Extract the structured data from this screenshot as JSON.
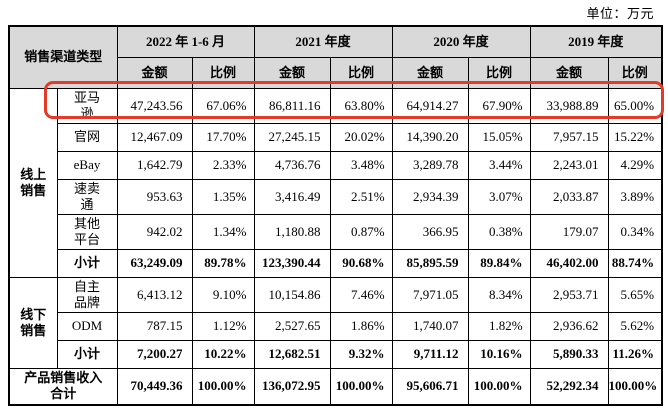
{
  "unit_label": "单位：万元",
  "highlight": {
    "target_row": "亚马逊",
    "color": "#e23b2a"
  },
  "header_bg": "#d9d9d9",
  "table": {
    "header": {
      "channel_type": "销售渠道类型",
      "periods": [
        "2022 年 1-6 月",
        "2021 年度",
        "2020 年度",
        "2019 年度"
      ],
      "amount_label": "金额",
      "ratio_label": "比例"
    },
    "groups": {
      "online": "线上\n销售",
      "offline": "线下\n销售"
    },
    "rows": [
      {
        "channel": "亚马\n逊",
        "values": [
          "47,243.56",
          "67.06%",
          "86,811.16",
          "63.80%",
          "64,914.27",
          "67.90%",
          "33,988.89",
          "65.00%"
        ]
      },
      {
        "channel": "官网",
        "values": [
          "12,467.09",
          "17.70%",
          "27,245.15",
          "20.02%",
          "14,390.20",
          "15.05%",
          "7,957.15",
          "15.22%"
        ]
      },
      {
        "channel": "eBay",
        "values": [
          "1,642.79",
          "2.33%",
          "4,736.76",
          "3.48%",
          "3,289.78",
          "3.44%",
          "2,243.01",
          "4.29%"
        ]
      },
      {
        "channel": "速卖\n通",
        "values": [
          "953.63",
          "1.35%",
          "3,416.49",
          "2.51%",
          "2,934.39",
          "3.07%",
          "2,033.87",
          "3.89%"
        ]
      },
      {
        "channel": "其他\n平台",
        "values": [
          "942.02",
          "1.34%",
          "1,180.88",
          "0.87%",
          "366.95",
          "0.38%",
          "179.07",
          "0.34%"
        ]
      },
      {
        "channel": "小计",
        "values": [
          "63,249.09",
          "89.78%",
          "123,390.44",
          "90.68%",
          "85,895.59",
          "89.84%",
          "46,402.00",
          "88.74%"
        ]
      },
      {
        "channel": "自主\n品牌",
        "values": [
          "6,413.12",
          "9.10%",
          "10,154.86",
          "7.46%",
          "7,971.05",
          "8.34%",
          "2,953.71",
          "5.65%"
        ]
      },
      {
        "channel": "ODM",
        "values": [
          "787.15",
          "1.12%",
          "2,527.65",
          "1.86%",
          "1,740.07",
          "1.82%",
          "2,936.62",
          "5.62%"
        ]
      },
      {
        "channel": "小计",
        "values": [
          "7,200.27",
          "10.22%",
          "12,682.51",
          "9.32%",
          "9,711.12",
          "10.16%",
          "5,890.33",
          "11.26%"
        ]
      }
    ],
    "total_row": {
      "label": "产品销售收入\n合计",
      "values": [
        "70,449.36",
        "100.00%",
        "136,072.95",
        "100.00%",
        "95,606.71",
        "100.00%",
        "52,292.34",
        "100.00%"
      ]
    }
  }
}
